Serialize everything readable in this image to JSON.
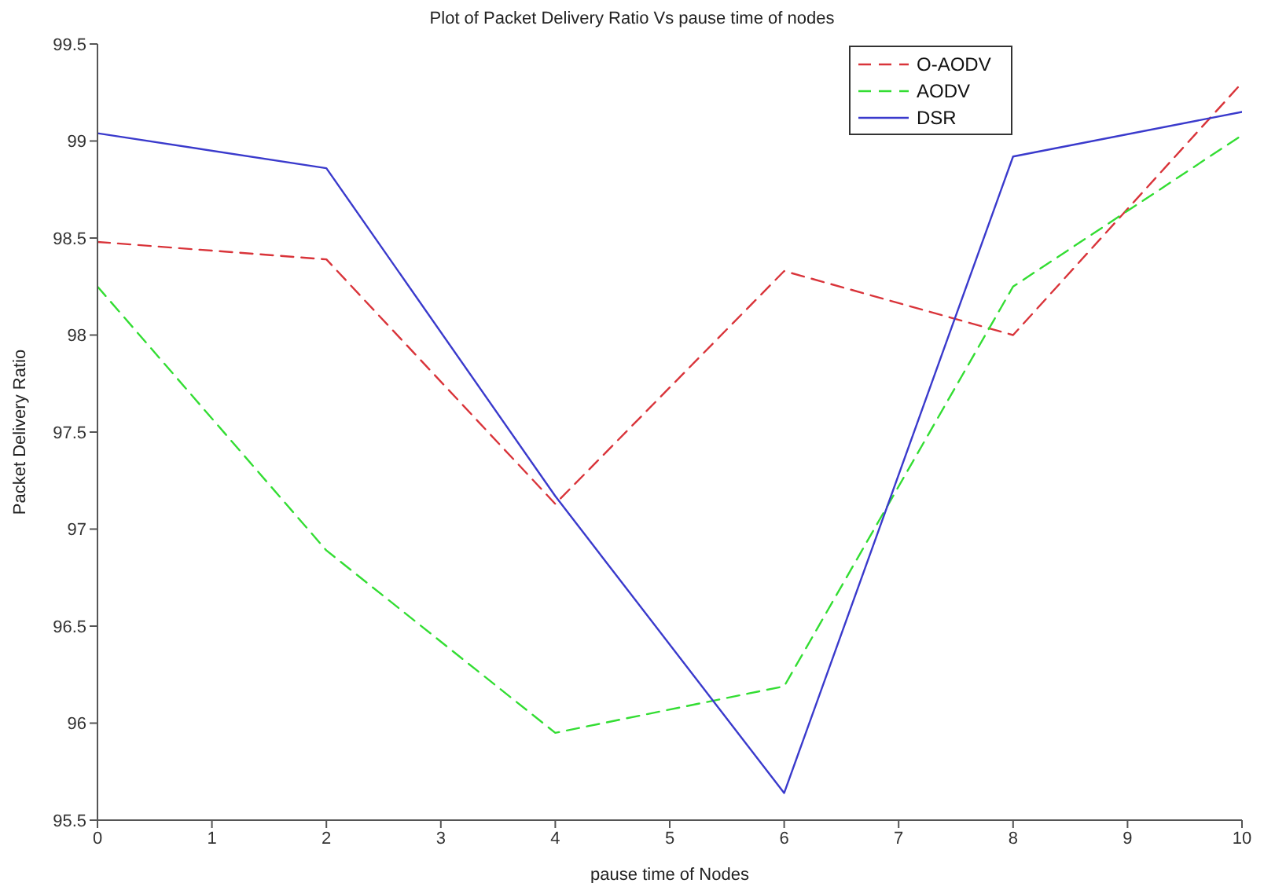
{
  "chart_data": {
    "type": "line",
    "title": "Plot of Packet Delivery Ratio Vs pause time of nodes",
    "xlabel": "pause time of Nodes",
    "ylabel": "Packet Delivery Ratio",
    "x": [
      0,
      2,
      4,
      6,
      8,
      10
    ],
    "series": [
      {
        "name": "O-AODV",
        "color": "#d9343a",
        "line_style": "dashed",
        "values": [
          98.48,
          98.39,
          97.13,
          98.33,
          98.0,
          99.3
        ]
      },
      {
        "name": "AODV",
        "color": "#33dd33",
        "line_style": "dashed",
        "values": [
          98.25,
          96.89,
          95.95,
          96.19,
          98.25,
          99.03
        ]
      },
      {
        "name": "DSR",
        "color": "#3a3acc",
        "line_style": "solid",
        "values": [
          99.04,
          98.86,
          97.17,
          95.64,
          98.92,
          99.15
        ]
      }
    ],
    "xlim": [
      0,
      10
    ],
    "xticks": [
      0,
      1,
      2,
      3,
      4,
      5,
      6,
      7,
      8,
      9,
      10
    ],
    "ylim": [
      95.5,
      99.5
    ],
    "yticks": [
      95.5,
      96,
      96.5,
      97,
      97.5,
      98,
      98.5,
      99,
      99.5
    ],
    "grid": false,
    "legend": "top right",
    "marker": "none"
  }
}
